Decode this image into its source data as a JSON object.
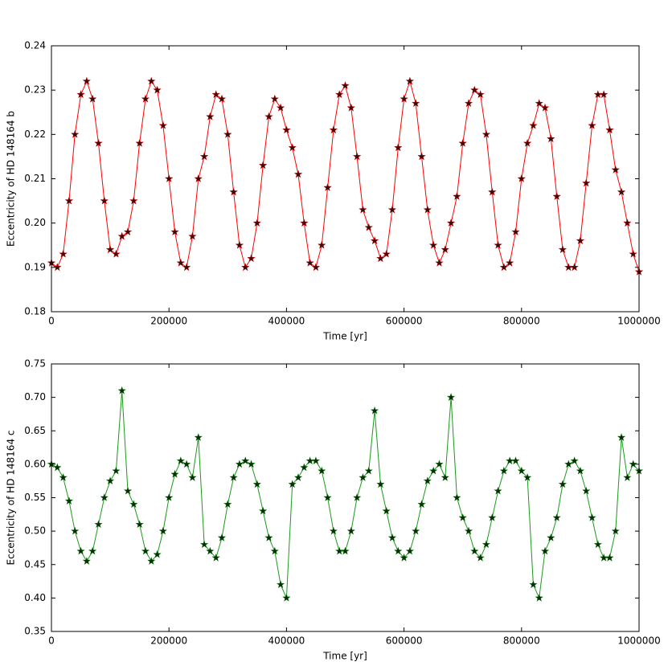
{
  "chart_data": [
    {
      "type": "line",
      "xlabel": "Time [yr]",
      "ylabel": "Eccentricity of HD 148164 b",
      "x": [
        0,
        10000,
        20000,
        30000,
        40000,
        50000,
        60000,
        70000,
        80000,
        90000,
        100000,
        110000,
        120000,
        130000,
        140000,
        150000,
        160000,
        170000,
        180000,
        190000,
        200000,
        210000,
        220000,
        230000,
        240000,
        250000,
        260000,
        270000,
        280000,
        290000,
        300000,
        310000,
        320000,
        330000,
        340000,
        350000,
        360000,
        370000,
        380000,
        390000,
        400000,
        410000,
        420000,
        430000,
        440000,
        450000,
        460000,
        470000,
        480000,
        490000,
        500000,
        510000,
        520000,
        530000,
        540000,
        550000,
        560000,
        570000,
        580000,
        590000,
        600000,
        610000,
        620000,
        630000,
        640000,
        650000,
        660000,
        670000,
        680000,
        690000,
        700000,
        710000,
        720000,
        730000,
        740000,
        750000,
        760000,
        770000,
        780000,
        790000,
        800000,
        810000,
        820000,
        830000,
        840000,
        850000,
        860000,
        870000,
        880000,
        890000,
        900000,
        910000,
        920000,
        930000,
        940000,
        950000,
        960000,
        970000,
        980000,
        990000,
        1000000
      ],
      "series": [
        {
          "color": "#ff0000",
          "marker_color": "#3a0a0a",
          "values": [
            0.191,
            0.19,
            0.193,
            0.205,
            0.22,
            0.229,
            0.232,
            0.228,
            0.218,
            0.205,
            0.194,
            0.193,
            0.197,
            0.198,
            0.205,
            0.218,
            0.228,
            0.232,
            0.23,
            0.222,
            0.21,
            0.198,
            0.191,
            0.19,
            0.197,
            0.21,
            0.215,
            0.224,
            0.229,
            0.228,
            0.22,
            0.207,
            0.195,
            0.19,
            0.192,
            0.2,
            0.213,
            0.224,
            0.228,
            0.226,
            0.221,
            0.217,
            0.211,
            0.2,
            0.191,
            0.19,
            0.195,
            0.208,
            0.221,
            0.229,
            0.231,
            0.226,
            0.215,
            0.203,
            0.199,
            0.196,
            0.192,
            0.193,
            0.203,
            0.217,
            0.228,
            0.232,
            0.227,
            0.215,
            0.203,
            0.195,
            0.191,
            0.194,
            0.2,
            0.206,
            0.218,
            0.227,
            0.23,
            0.229,
            0.22,
            0.207,
            0.195,
            0.19,
            0.191,
            0.198,
            0.21,
            0.218,
            0.222,
            0.227,
            0.226,
            0.219,
            0.206,
            0.194,
            0.19,
            0.19,
            0.196,
            0.209,
            0.222,
            0.229,
            0.229,
            0.221,
            0.212,
            0.207,
            0.2,
            0.193,
            0.189
          ]
        }
      ],
      "xlim": [
        0,
        1000000
      ],
      "xticks": [
        0,
        200000,
        400000,
        600000,
        800000,
        1000000
      ],
      "ylim": [
        0.18,
        0.24
      ],
      "yticks": [
        0.18,
        0.19,
        {
          "value": 0.2,
          "label": "0.20"
        },
        0.21,
        0.22,
        0.23,
        0.24
      ]
    },
    {
      "type": "line",
      "xlabel": "Time [yr]",
      "ylabel": "Eccentricity of HD 148164 c",
      "x": [
        0,
        10000,
        20000,
        30000,
        40000,
        50000,
        60000,
        70000,
        80000,
        90000,
        100000,
        110000,
        120000,
        130000,
        140000,
        150000,
        160000,
        170000,
        180000,
        190000,
        200000,
        210000,
        220000,
        230000,
        240000,
        250000,
        260000,
        270000,
        280000,
        290000,
        300000,
        310000,
        320000,
        330000,
        340000,
        350000,
        360000,
        370000,
        380000,
        390000,
        400000,
        410000,
        420000,
        430000,
        440000,
        450000,
        460000,
        470000,
        480000,
        490000,
        500000,
        510000,
        520000,
        530000,
        540000,
        550000,
        560000,
        570000,
        580000,
        590000,
        600000,
        610000,
        620000,
        630000,
        640000,
        650000,
        660000,
        670000,
        680000,
        690000,
        700000,
        710000,
        720000,
        730000,
        740000,
        750000,
        760000,
        770000,
        780000,
        790000,
        800000,
        810000,
        820000,
        830000,
        840000,
        850000,
        860000,
        870000,
        880000,
        890000,
        900000,
        910000,
        920000,
        930000,
        940000,
        950000,
        960000,
        970000,
        980000,
        990000,
        1000000
      ],
      "series": [
        {
          "color": "#1a9a1a",
          "marker_color": "#0a2a0a",
          "values": [
            0.6,
            0.595,
            0.58,
            0.545,
            0.5,
            0.47,
            0.455,
            0.47,
            0.51,
            0.55,
            0.575,
            0.59,
            0.71,
            0.56,
            0.54,
            0.51,
            0.47,
            0.455,
            0.465,
            0.5,
            0.55,
            0.585,
            0.605,
            0.6,
            0.58,
            0.64,
            0.48,
            0.47,
            0.46,
            0.49,
            0.54,
            0.58,
            0.6,
            0.605,
            0.6,
            0.57,
            0.53,
            0.49,
            0.47,
            0.42,
            0.4,
            0.57,
            0.58,
            0.595,
            0.605,
            0.605,
            0.59,
            0.55,
            0.5,
            0.47,
            0.47,
            0.5,
            0.55,
            0.58,
            0.59,
            0.68,
            0.57,
            0.53,
            0.49,
            0.47,
            0.46,
            0.47,
            0.5,
            0.54,
            0.575,
            0.59,
            0.6,
            0.58,
            0.7,
            0.55,
            0.52,
            0.5,
            0.47,
            0.46,
            0.48,
            0.52,
            0.56,
            0.59,
            0.605,
            0.605,
            0.59,
            0.58,
            0.42,
            0.4,
            0.47,
            0.49,
            0.52,
            0.57,
            0.6,
            0.605,
            0.59,
            0.56,
            0.52,
            0.48,
            0.46,
            0.46,
            0.5,
            0.64,
            0.58,
            0.6,
            0.59
          ]
        }
      ],
      "xlim": [
        0,
        1000000
      ],
      "xticks": [
        0,
        200000,
        400000,
        600000,
        800000,
        1000000
      ],
      "ylim": [
        0.35,
        0.75
      ],
      "yticks": [
        0.35,
        {
          "value": 0.4,
          "label": "0.40"
        },
        0.45,
        {
          "value": 0.5,
          "label": "0.50"
        },
        0.55,
        {
          "value": 0.6,
          "label": "0.60"
        },
        0.65,
        {
          "value": 0.7,
          "label": "0.70"
        },
        0.75
      ]
    }
  ]
}
